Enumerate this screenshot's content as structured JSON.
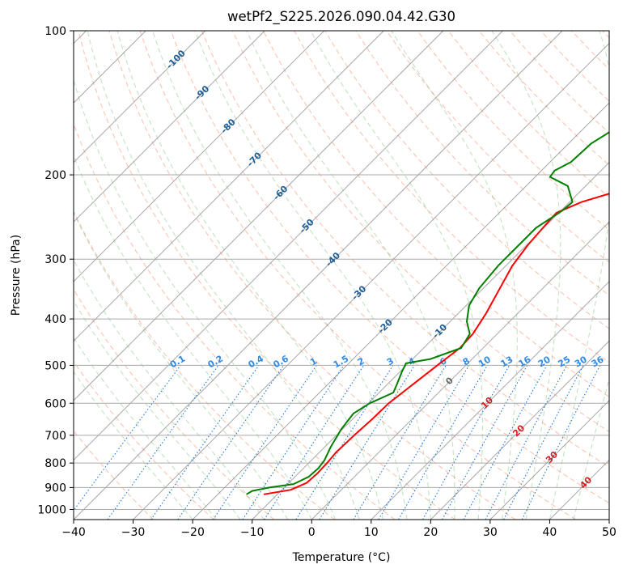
{
  "chart_data": {
    "type": "line",
    "title": "wetPf2_S225.2026.090.04.42.G30",
    "xlabel": "Temperature (°C)",
    "ylabel": "Pressure (hPa)",
    "xlim": [
      -40,
      50
    ],
    "ylim": [
      1050,
      100
    ],
    "x_ticks": [
      -40,
      -30,
      -20,
      -10,
      0,
      10,
      20,
      30,
      40,
      50
    ],
    "y_ticks": [
      100,
      200,
      300,
      400,
      500,
      600,
      700,
      800,
      900,
      1000
    ],
    "series": [
      {
        "name": "Temperature",
        "color": "#ff0000",
        "points": [
          [
            -12.3,
            930
          ],
          [
            -8.5,
            910
          ],
          [
            -7,
            880
          ],
          [
            -6.8,
            840
          ],
          [
            -6.9,
            800
          ],
          [
            -7.2,
            760
          ],
          [
            -7,
            700
          ],
          [
            -6.7,
            650
          ],
          [
            -6.6,
            600
          ],
          [
            -5.9,
            560
          ],
          [
            -4.8,
            500
          ],
          [
            -3.9,
            460
          ],
          [
            -4.1,
            430
          ],
          [
            -5.3,
            390
          ],
          [
            -7,
            350
          ],
          [
            -8.9,
            310
          ],
          [
            -9.8,
            280
          ],
          [
            -10.2,
            255
          ],
          [
            -10.4,
            240
          ],
          [
            -8,
            228
          ],
          [
            -2.5,
            213
          ],
          [
            2,
            203
          ],
          [
            7,
            190
          ],
          [
            13,
            172
          ],
          [
            18,
            155
          ],
          [
            21,
            140
          ],
          [
            24,
            127
          ],
          [
            27,
            115
          ],
          [
            30,
            104
          ],
          [
            31,
            100
          ]
        ]
      },
      {
        "name": "Dewpoint",
        "color": "#008000",
        "points": [
          [
            -15.2,
            930
          ],
          [
            -14.8,
            915
          ],
          [
            -12.5,
            900
          ],
          [
            -9,
            885
          ],
          [
            -7.7,
            855
          ],
          [
            -7.5,
            820
          ],
          [
            -7.8,
            790
          ],
          [
            -9,
            740
          ],
          [
            -10.2,
            680
          ],
          [
            -10.8,
            630
          ],
          [
            -9.8,
            600
          ],
          [
            -7.6,
            570
          ],
          [
            -8.5,
            545
          ],
          [
            -9.7,
            515
          ],
          [
            -10.4,
            495
          ],
          [
            -7,
            485
          ],
          [
            -3.7,
            460
          ],
          [
            -4.6,
            430
          ],
          [
            -7.2,
            405
          ],
          [
            -9.5,
            375
          ],
          [
            -10.7,
            345
          ],
          [
            -11.3,
            310
          ],
          [
            -11.3,
            280
          ],
          [
            -11.3,
            258
          ],
          [
            -9.8,
            238
          ],
          [
            -9.5,
            228
          ],
          [
            -13,
            211
          ],
          [
            -17.5,
            202
          ],
          [
            -17.8,
            196
          ],
          [
            -16.5,
            188
          ],
          [
            -16.2,
            172
          ],
          [
            -14,
            155
          ],
          [
            -9,
            132
          ],
          [
            -3,
            112
          ],
          [
            0,
            100
          ]
        ]
      }
    ],
    "background_lines": {
      "isotherms": "every 10 °C, skewed",
      "dry_adiabats": "dashed, every 10 K",
      "moist_adiabats": "dashed",
      "mixing_ratio_lines": "dotted"
    },
    "annotations": {
      "isotherm_labels": [
        "-100",
        "-90",
        "-80",
        "-70",
        "-60",
        "-50",
        "-40",
        "-30",
        "-20",
        "-10",
        "0",
        "10",
        "20",
        "30",
        "40"
      ],
      "mixing_ratio_labels": [
        "0.1",
        "0.2",
        "0.4",
        "0.6",
        "1",
        "1.5",
        "2",
        "3",
        "4",
        "6",
        "8",
        "10",
        "13",
        "16",
        "20",
        "25",
        "30",
        "36"
      ]
    }
  }
}
